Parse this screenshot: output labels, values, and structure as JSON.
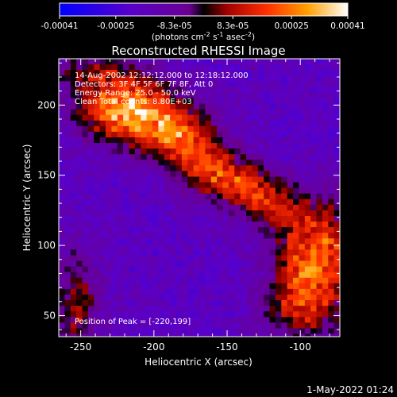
{
  "chart_data": {
    "type": "heatmap",
    "title": "Reconstructed RHESSI Image",
    "xlabel": "Heliocentric X (arcsec)",
    "ylabel": "Heliocentric Y (arcsec)",
    "xlim": [
      -265,
      -73
    ],
    "ylim": [
      35,
      233
    ],
    "x_ticks": [
      -250,
      -200,
      -150,
      -100
    ],
    "y_ticks": [
      50,
      100,
      150,
      200
    ],
    "colorbar": {
      "range": [
        -0.00041,
        0.00041
      ],
      "tick_values": [
        -0.00041,
        -0.00025,
        -8.3e-05,
        8.3e-05,
        0.00025,
        0.00041
      ],
      "tick_labels": [
        "-0.00041",
        "-0.00025",
        "-8.3e-05",
        "8.3e-05",
        "0.00025",
        "0.00041"
      ],
      "units": "(photons cm",
      "units_exp1": "-2",
      "units_mid": " s",
      "units_exp2": "-1",
      "units_mid2": " asec",
      "units_exp3": "-2",
      "units_end": ")"
    },
    "annotations": [
      "14-Aug-2002 12:12:12.000 to 12:18:12.000",
      "Detectors: 3F 4F 5F 6F 7F 8F, Att 0",
      "Energy Range: 25.0 - 50.0 keV",
      "Clean   Total counts: 8.80E+03"
    ],
    "peak_label": "Position of Peak = [-220,199]",
    "peak": [
      -220,
      199
    ],
    "sources": [
      {
        "x": -220,
        "y": 199,
        "sx": 22,
        "sy": 16,
        "amp": 1.0
      },
      {
        "x": -185,
        "y": 180,
        "sx": 18,
        "sy": 14,
        "amp": 0.7
      },
      {
        "x": -165,
        "y": 155,
        "sx": 15,
        "sy": 13,
        "amp": 0.6
      },
      {
        "x": -140,
        "y": 145,
        "sx": 14,
        "sy": 12,
        "amp": 0.55
      },
      {
        "x": -120,
        "y": 130,
        "sx": 13,
        "sy": 11,
        "amp": 0.45
      },
      {
        "x": -90,
        "y": 100,
        "sx": 20,
        "sy": 25,
        "amp": 0.75
      },
      {
        "x": -100,
        "y": 60,
        "sx": 18,
        "sy": 18,
        "amp": 0.55
      },
      {
        "x": -255,
        "y": 60,
        "sx": 12,
        "sy": 28,
        "amp": 0.45
      },
      {
        "x": -245,
        "y": 225,
        "sx": 20,
        "sy": 10,
        "amp": 0.35
      }
    ]
  },
  "footer": {
    "timestamp": "1-May-2022 01:24"
  }
}
